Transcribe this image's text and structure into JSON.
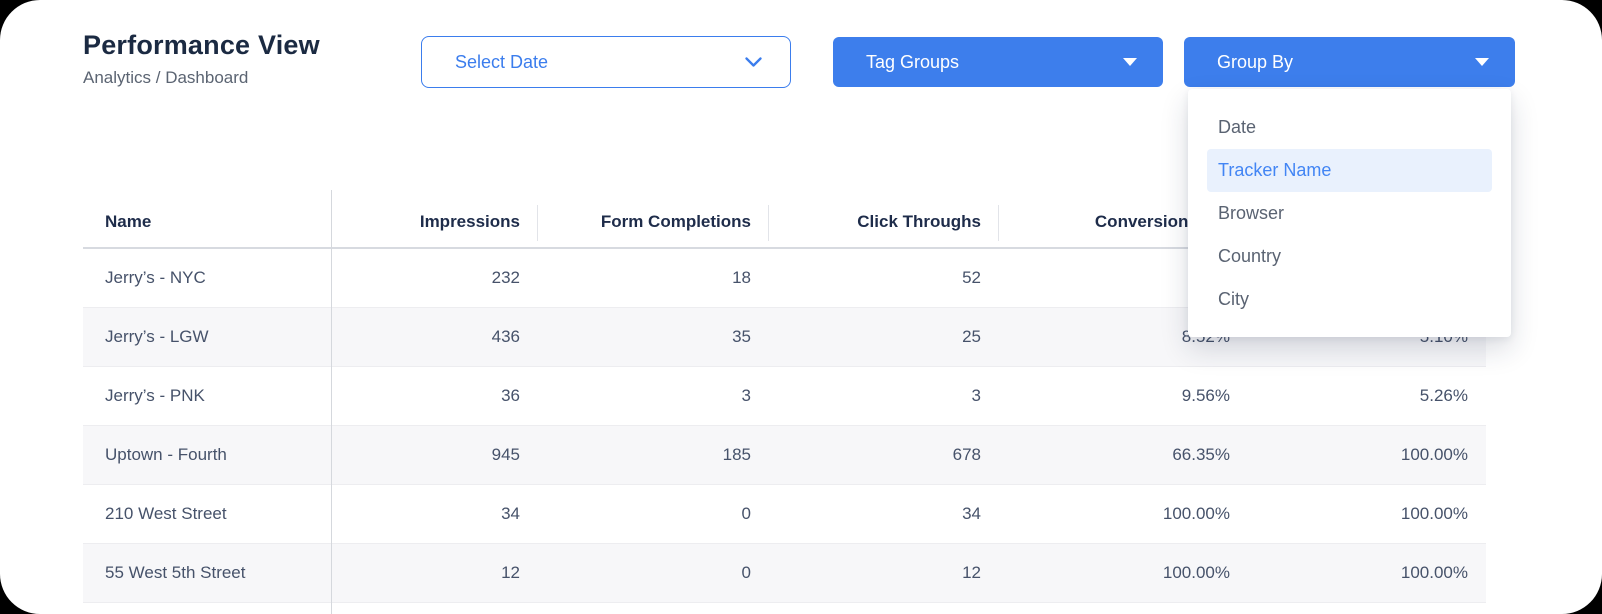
{
  "page": {
    "title": "Performance View",
    "breadcrumb": "Analytics / Dashboard"
  },
  "toolbar": {
    "select_date_label": "Select Date",
    "tag_groups_label": "Tag Groups",
    "group_by_label": "Group By"
  },
  "group_by_menu": {
    "items": [
      "Date",
      "Tracker Name",
      "Browser",
      "Country",
      "City"
    ],
    "selected": "Tracker Name"
  },
  "table": {
    "columns": [
      "Name",
      "Impressions",
      "Form Completions",
      "Click Throughs",
      "Conversion Rate",
      ""
    ],
    "rows": [
      {
        "name": "Jerry’s - NYC",
        "values": [
          "232",
          "18",
          "52",
          "",
          ""
        ]
      },
      {
        "name": "Jerry’s - LGW",
        "values": [
          "436",
          "35",
          "25",
          "8.52%",
          "5.10%"
        ]
      },
      {
        "name": "Jerry’s - PNK",
        "values": [
          "36",
          "3",
          "3",
          "9.56%",
          "5.26%"
        ]
      },
      {
        "name": "Uptown - Fourth",
        "values": [
          "945",
          "185",
          "678",
          "66.35%",
          "100.00%"
        ]
      },
      {
        "name": "210 West Street",
        "values": [
          "34",
          "0",
          "34",
          "100.00%",
          "100.00%"
        ]
      },
      {
        "name": "55 West 5th Street",
        "values": [
          "12",
          "0",
          "12",
          "100.00%",
          "100.00%"
        ]
      }
    ]
  },
  "colors": {
    "accent_blue": "#3b7ded",
    "button_blue": "#3d7eec",
    "selected_item_bg": "#e9f1fd",
    "selected_item_text": "#4285f4",
    "heading_navy": "#1b2a42",
    "row_alt_bg": "#f7f7f9"
  }
}
